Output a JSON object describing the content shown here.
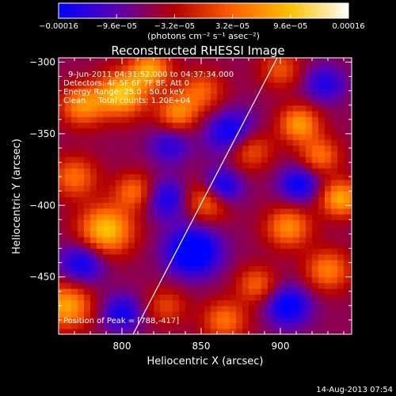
{
  "chart_data": {
    "type": "heatmap",
    "title": "Reconstructed RHESSI Image",
    "xlabel": "Heliocentric X (arcsec)",
    "ylabel": "Heliocentric Y (arcsec)",
    "xlim": [
      760,
      945
    ],
    "ylim": [
      -490,
      -297
    ],
    "x_ticks": [
      {
        "v": 800,
        "label": "800"
      },
      {
        "v": 850,
        "label": "850"
      },
      {
        "v": 900,
        "label": "900"
      }
    ],
    "y_ticks": [
      {
        "v": -300,
        "label": "−300"
      },
      {
        "v": -350,
        "label": "−350"
      },
      {
        "v": -400,
        "label": "−400"
      },
      {
        "v": -450,
        "label": "−450"
      }
    ],
    "colorbar": {
      "range": [
        -0.00016,
        0.00016
      ],
      "tick_values": [
        -0.00016,
        -9.6e-05,
        -3.2e-05,
        3.2e-05,
        9.6e-05,
        0.00016
      ],
      "tick_labels": [
        "−0.00016",
        "−9.6e−05",
        "−3.2e−05",
        "3.2e−05",
        "9.6e−05",
        "0.00016"
      ],
      "unit_label": "(photons cm⁻² s⁻¹ asec⁻²)",
      "colors": [
        "#0000ff",
        "#5a00b4",
        "#b40000",
        "#ff6000",
        "#ffc000",
        "#ffffff"
      ]
    },
    "annotations": [
      "9-Jun-2011 04:31:52.000 to 04:37:34.000",
      "Detectors: 4F 5F 6F 7F 8F, Att 0",
      "Energy Range: 25.0 - 50.0 keV",
      "Clean     Total counts: 1.20E+04"
    ],
    "peak_label": "Position of Peak = [788,-417]",
    "limb_line": [
      [
        807,
        -490
      ],
      [
        898,
        -297
      ]
    ],
    "blobs": [
      {
        "x": 775,
        "y": -330,
        "amp": 0.00012,
        "s": 10
      },
      {
        "x": 800,
        "y": -322,
        "amp": 0.00016,
        "s": 11
      },
      {
        "x": 818,
        "y": -305,
        "amp": 0.00013,
        "s": 9
      },
      {
        "x": 850,
        "y": -320,
        "amp": 9e-05,
        "s": 10
      },
      {
        "x": 835,
        "y": -335,
        "amp": 0.00011,
        "s": 9
      },
      {
        "x": 770,
        "y": -380,
        "amp": 0.0001,
        "s": 10
      },
      {
        "x": 790,
        "y": -417,
        "amp": 0.00016,
        "s": 12
      },
      {
        "x": 808,
        "y": -390,
        "amp": 0.0001,
        "s": 9
      },
      {
        "x": 855,
        "y": -395,
        "amp": 0.00014,
        "s": 10
      },
      {
        "x": 880,
        "y": -360,
        "amp": 0.00011,
        "s": 10
      },
      {
        "x": 912,
        "y": -343,
        "amp": 0.00013,
        "s": 9
      },
      {
        "x": 925,
        "y": -365,
        "amp": 0.0001,
        "s": 9
      },
      {
        "x": 938,
        "y": -395,
        "amp": 0.00014,
        "s": 9
      },
      {
        "x": 905,
        "y": -415,
        "amp": 0.00012,
        "s": 10
      },
      {
        "x": 930,
        "y": -445,
        "amp": 0.00011,
        "s": 10
      },
      {
        "x": 885,
        "y": -455,
        "amp": 9e-05,
        "s": 9
      },
      {
        "x": 865,
        "y": -480,
        "amp": 0.0001,
        "s": 10
      },
      {
        "x": 828,
        "y": -470,
        "amp": 7e-05,
        "s": 9
      },
      {
        "x": 765,
        "y": -470,
        "amp": 0.00014,
        "s": 11
      },
      {
        "x": 900,
        "y": -305,
        "amp": 8e-05,
        "s": 9
      },
      {
        "x": 845,
        "y": -432,
        "amp": -0.00014,
        "s": 12
      },
      {
        "x": 862,
        "y": -388,
        "amp": -0.00015,
        "s": 9
      },
      {
        "x": 870,
        "y": -350,
        "amp": -0.00012,
        "s": 11
      },
      {
        "x": 775,
        "y": -440,
        "amp": -0.0001,
        "s": 10
      },
      {
        "x": 828,
        "y": -395,
        "amp": -9e-05,
        "s": 10
      },
      {
        "x": 905,
        "y": -470,
        "amp": -0.00011,
        "s": 10
      },
      {
        "x": 912,
        "y": -385,
        "amp": -0.0001,
        "s": 9
      },
      {
        "x": 800,
        "y": -475,
        "amp": -9e-05,
        "s": 9
      },
      {
        "x": 830,
        "y": -358,
        "amp": -7e-05,
        "s": 9
      },
      {
        "x": 928,
        "y": -315,
        "amp": -8e-05,
        "s": 9
      }
    ],
    "background": -6e-05
  },
  "footer": {
    "timestamp": "14-Aug-2013 07:54"
  }
}
